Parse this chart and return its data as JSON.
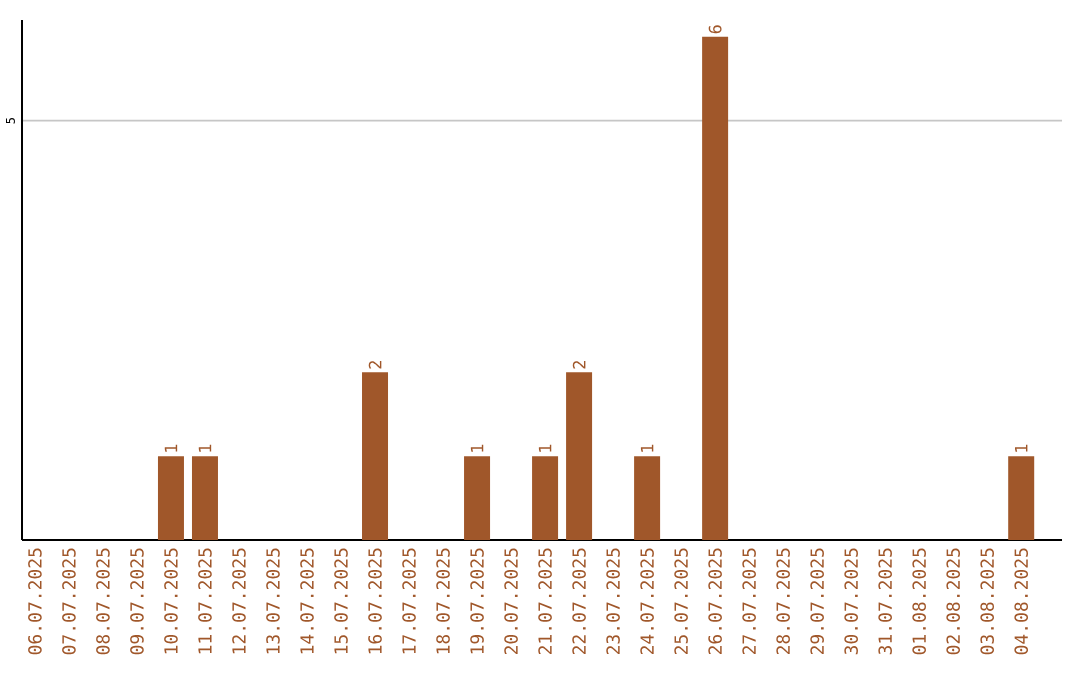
{
  "chart_data": {
    "type": "bar",
    "categories": [
      "06.07.2025",
      "07.07.2025",
      "08.07.2025",
      "09.07.2025",
      "10.07.2025",
      "11.07.2025",
      "12.07.2025",
      "13.07.2025",
      "14.07.2025",
      "15.07.2025",
      "16.07.2025",
      "17.07.2025",
      "18.07.2025",
      "19.07.2025",
      "20.07.2025",
      "21.07.2025",
      "22.07.2025",
      "23.07.2025",
      "24.07.2025",
      "25.07.2025",
      "26.07.2025",
      "27.07.2025",
      "28.07.2025",
      "29.07.2025",
      "30.07.2025",
      "31.07.2025",
      "01.08.2025",
      "02.08.2025",
      "03.08.2025",
      "04.08.2025"
    ],
    "values": [
      0,
      0,
      0,
      0,
      1,
      1,
      0,
      0,
      0,
      0,
      2,
      0,
      0,
      1,
      0,
      1,
      2,
      0,
      1,
      0,
      6,
      0,
      0,
      0,
      0,
      0,
      0,
      0,
      0,
      1
    ],
    "value_labels": [
      null,
      null,
      null,
      null,
      "1",
      "1",
      null,
      null,
      null,
      null,
      "2",
      null,
      null,
      "1",
      null,
      "1",
      "2",
      null,
      "1",
      null,
      "6",
      null,
      null,
      null,
      null,
      null,
      null,
      null,
      null,
      "1"
    ],
    "color": "#a0572a",
    "ylim": [
      0,
      6.2
    ],
    "yticks": [
      5
    ],
    "grid": "y"
  }
}
